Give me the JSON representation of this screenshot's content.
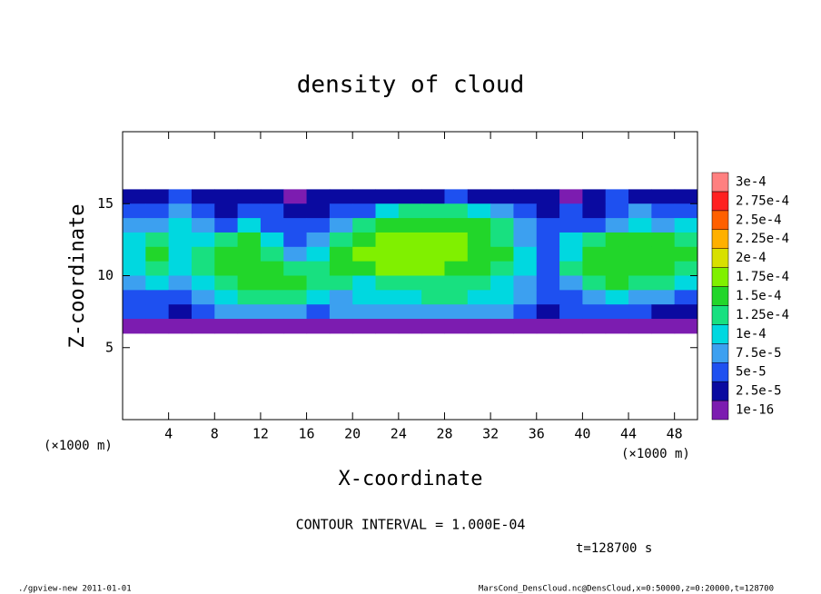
{
  "chart_data": {
    "type": "heatmap",
    "title": "density of cloud",
    "x_label": "X-coordinate",
    "y_label": "Z-coordinate",
    "x_unit": "(×1000 m)",
    "y_unit": "(×1000 m)",
    "contour_note": "CONTOUR INTERVAL = 1.000E-04",
    "time_note": "t=128700 s",
    "footer_left": "./gpview-new  2011-01-01",
    "footer_right": "MarsCond_DensCloud.nc@DensCloud,x=0:50000,z=0:20000,t=128700",
    "xlim": [
      0,
      50
    ],
    "ylim": [
      0,
      20
    ],
    "xticks": [
      4,
      8,
      12,
      16,
      20,
      24,
      28,
      32,
      36,
      40,
      44,
      48
    ],
    "yticks": [
      5,
      10,
      15
    ],
    "x": [
      1,
      3,
      5,
      7,
      9,
      11,
      13,
      15,
      17,
      19,
      21,
      23,
      25,
      27,
      29,
      31,
      33,
      35,
      37,
      39,
      41,
      43,
      45,
      47,
      49
    ],
    "y": [
      15.5,
      14.5,
      13.5,
      12.5,
      11.5,
      10.5,
      9.5,
      8.5,
      7.5,
      6.5
    ],
    "values": [
      [
        3e-05,
        3e-05,
        6e-05,
        3e-05,
        3e-05,
        3e-05,
        3e-05,
        1e-05,
        3e-05,
        3e-05,
        3e-05,
        3e-05,
        3e-05,
        3e-05,
        6e-05,
        3e-05,
        3e-05,
        3e-05,
        3e-05,
        1e-05,
        3e-05,
        6e-05,
        3e-05,
        3e-05,
        3e-05
      ],
      [
        6e-05,
        6e-05,
        8e-05,
        6e-05,
        3e-05,
        6e-05,
        6e-05,
        3e-05,
        3e-05,
        6e-05,
        6e-05,
        0.00011,
        0.00013,
        0.00013,
        0.00013,
        0.00011,
        8e-05,
        6e-05,
        3e-05,
        6e-05,
        3e-05,
        6e-05,
        8e-05,
        6e-05,
        6e-05
      ],
      [
        8e-05,
        8e-05,
        0.00011,
        8e-05,
        6e-05,
        0.00011,
        6e-05,
        6e-05,
        6e-05,
        8e-05,
        0.00013,
        0.00016,
        0.00016,
        0.00016,
        0.00016,
        0.00016,
        0.00013,
        8e-05,
        6e-05,
        6e-05,
        6e-05,
        8e-05,
        0.00011,
        8e-05,
        0.00011
      ],
      [
        0.00011,
        0.00013,
        0.00011,
        0.00011,
        0.00013,
        0.00016,
        0.00011,
        6e-05,
        8e-05,
        0.00013,
        0.00016,
        0.00018,
        0.00018,
        0.00018,
        0.00018,
        0.00016,
        0.00013,
        8e-05,
        6e-05,
        0.00011,
        0.00013,
        0.00016,
        0.00016,
        0.00016,
        0.00013
      ],
      [
        0.00011,
        0.00016,
        0.00011,
        0.00013,
        0.00016,
        0.00016,
        0.00013,
        8e-05,
        0.00011,
        0.00016,
        0.00018,
        0.00018,
        0.00018,
        0.00018,
        0.00018,
        0.00016,
        0.00016,
        0.00011,
        6e-05,
        0.00011,
        0.00016,
        0.00016,
        0.00016,
        0.00016,
        0.00016
      ],
      [
        0.00011,
        0.00013,
        0.00011,
        0.00013,
        0.00016,
        0.00016,
        0.00016,
        0.00013,
        0.00013,
        0.00016,
        0.00016,
        0.00018,
        0.00018,
        0.00018,
        0.00016,
        0.00016,
        0.00013,
        0.00011,
        6e-05,
        0.00013,
        0.00016,
        0.00016,
        0.00016,
        0.00016,
        0.00013
      ],
      [
        8e-05,
        0.00011,
        8e-05,
        0.00011,
        0.00013,
        0.00016,
        0.00016,
        0.00016,
        0.00013,
        0.00013,
        0.00011,
        0.00013,
        0.00013,
        0.00013,
        0.00013,
        0.00013,
        0.00011,
        8e-05,
        6e-05,
        8e-05,
        0.00013,
        0.00016,
        0.00013,
        0.00013,
        0.00011
      ],
      [
        6e-05,
        6e-05,
        6e-05,
        8e-05,
        0.00011,
        0.00013,
        0.00013,
        0.00013,
        0.00011,
        8e-05,
        0.00011,
        0.00011,
        0.00011,
        0.00013,
        0.00013,
        0.00011,
        0.00011,
        8e-05,
        6e-05,
        6e-05,
        8e-05,
        0.00011,
        8e-05,
        8e-05,
        6e-05
      ],
      [
        6e-05,
        6e-05,
        3e-05,
        6e-05,
        8e-05,
        8e-05,
        8e-05,
        8e-05,
        6e-05,
        8e-05,
        8e-05,
        8e-05,
        8e-05,
        8e-05,
        8e-05,
        8e-05,
        8e-05,
        6e-05,
        3e-05,
        6e-05,
        6e-05,
        6e-05,
        6e-05,
        3e-05,
        3e-05
      ],
      [
        1e-05,
        1e-05,
        1e-05,
        1e-05,
        1e-05,
        1e-05,
        1e-05,
        1e-05,
        1e-05,
        1e-05,
        1e-05,
        1e-05,
        1e-05,
        1e-05,
        1e-05,
        1e-05,
        1e-05,
        1e-05,
        1e-05,
        1e-05,
        1e-05,
        1e-05,
        1e-05,
        1e-05,
        1e-05
      ]
    ],
    "levels": [
      {
        "value": 1e-16,
        "label": "1e-16"
      },
      {
        "value": 2.5e-05,
        "label": "2.5e-5"
      },
      {
        "value": 5e-05,
        "label": "5e-5"
      },
      {
        "value": 7.5e-05,
        "label": "7.5e-5"
      },
      {
        "value": 0.0001,
        "label": "1e-4"
      },
      {
        "value": 0.000125,
        "label": "1.25e-4"
      },
      {
        "value": 0.00015,
        "label": "1.5e-4"
      },
      {
        "value": 0.000175,
        "label": "1.75e-4"
      },
      {
        "value": 0.0002,
        "label": "2e-4"
      },
      {
        "value": 0.000225,
        "label": "2.25e-4"
      },
      {
        "value": 0.00025,
        "label": "2.5e-4"
      },
      {
        "value": 0.000275,
        "label": "2.75e-4"
      },
      {
        "value": 0.0003,
        "label": "3e-4"
      }
    ],
    "level_colors": [
      "#7c1cb0",
      "#0a0aa0",
      "#1e50f0",
      "#3ca0f0",
      "#00d8e0",
      "#18e080",
      "#22d62a",
      "#80f000",
      "#d8e000",
      "#ffb000",
      "#ff6000",
      "#ff2020",
      "#ff8080"
    ]
  }
}
